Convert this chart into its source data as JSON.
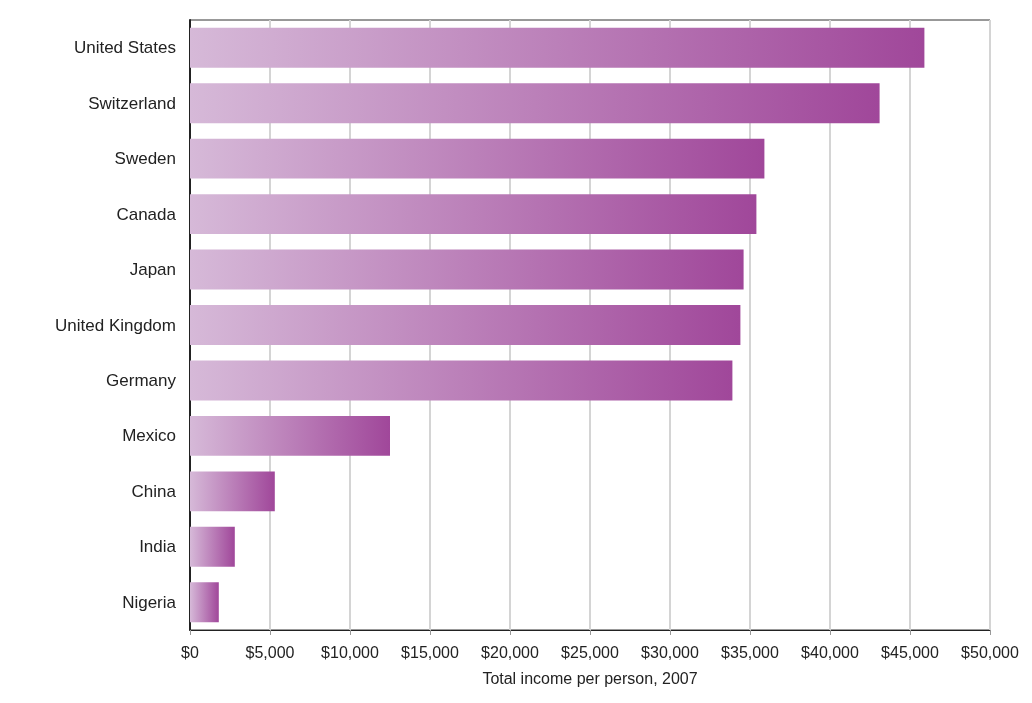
{
  "chart_data": {
    "type": "bar",
    "orientation": "horizontal",
    "xlabel": "Total income per person, 2007",
    "categories": [
      "United States",
      "Switzerland",
      "Sweden",
      "Canada",
      "Japan",
      "United Kingdom",
      "Germany",
      "Mexico",
      "China",
      "India",
      "Nigeria"
    ],
    "values": [
      45900,
      43100,
      35900,
      35400,
      34600,
      34400,
      33900,
      12500,
      5300,
      2800,
      1800
    ],
    "color": "#a0479a",
    "xlim": [
      0,
      50000
    ],
    "xticks": [
      {
        "value": 0,
        "label": "$0"
      },
      {
        "value": 5000,
        "label": "$5,000"
      },
      {
        "value": 10000,
        "label": "$10,000"
      },
      {
        "value": 15000,
        "label": "$15,000"
      },
      {
        "value": 20000,
        "label": "$20,000"
      },
      {
        "value": 25000,
        "label": "$25,000"
      },
      {
        "value": 30000,
        "label": "$30,000"
      },
      {
        "value": 35000,
        "label": "$35,000"
      },
      {
        "value": 40000,
        "label": "$40,000"
      },
      {
        "value": 45000,
        "label": "$45,000"
      },
      {
        "value": 50000,
        "label": "$50,000"
      }
    ],
    "grid": "x"
  }
}
